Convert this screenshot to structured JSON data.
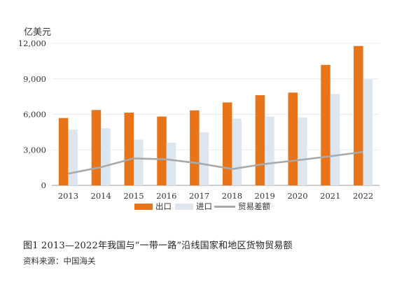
{
  "chart_data": {
    "type": "bar",
    "y_unit": "亿美元",
    "categories": [
      "2013",
      "2014",
      "2015",
      "2016",
      "2017",
      "2018",
      "2019",
      "2020",
      "2021",
      "2022"
    ],
    "series": [
      {
        "name": "出口",
        "type": "bar",
        "color": "#E8741A",
        "values": [
          5690,
          6370,
          6150,
          5820,
          6340,
          7010,
          7620,
          7840,
          10180,
          11780
        ]
      },
      {
        "name": "进口",
        "type": "bar",
        "color": "#DDE5EF",
        "values": [
          4700,
          4830,
          3870,
          3620,
          4480,
          5630,
          5810,
          5720,
          7720,
          8950
        ]
      },
      {
        "name": "贸易差额",
        "type": "line",
        "color": "#A9A9A9",
        "values": [
          990,
          1540,
          2280,
          2200,
          1860,
          1380,
          1810,
          2120,
          2460,
          2830
        ]
      }
    ],
    "ylim": [
      0,
      12000
    ],
    "yticks": [
      0,
      3000,
      6000,
      9000,
      12000
    ],
    "ytick_labels": [
      "0",
      "3,000",
      "6,000",
      "9,000",
      "12,000"
    ],
    "grid": true,
    "legend_position": "bottom"
  },
  "caption": "图1  2013—2022年我国与“一带一路”沿线国家和地区货物贸易额",
  "source": "资料来源：中国海关"
}
